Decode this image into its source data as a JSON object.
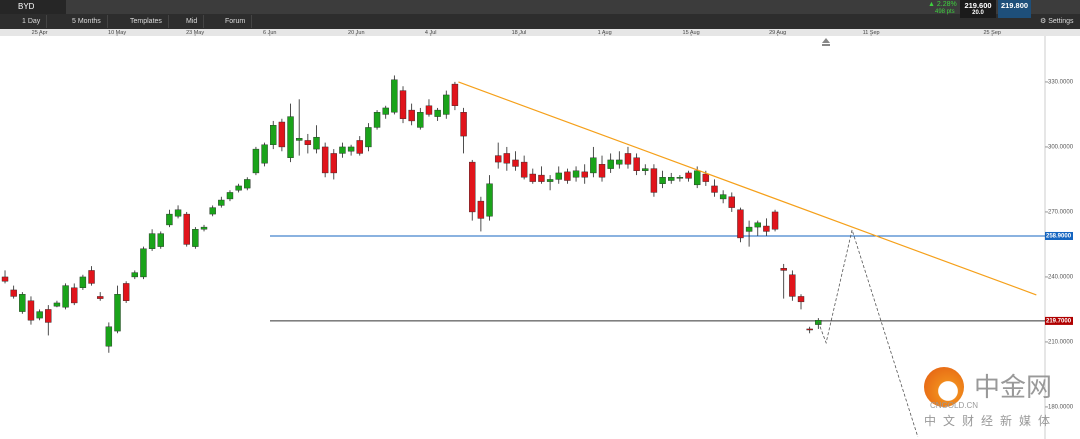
{
  "toolbar": {
    "symbol": "BYD",
    "buttons": [
      "1 Day",
      "5 Months",
      "Templates",
      "Mid",
      "Forum"
    ],
    "change": "2.28%",
    "points": "498 pts",
    "bid": "219.600",
    "spread": "20.0",
    "ask": "219.800",
    "settings": "Settings"
  },
  "watermark": {
    "name": "中金网",
    "site": "CNGOLD.CN",
    "slogan": "中文财经新媒体"
  },
  "chart_data": {
    "type": "candlestick",
    "up_color": "#1aa31a",
    "down_color": "#e0141b",
    "ylim": [
      165.2,
      351.2
    ],
    "yticks": [
      {
        "value": 330,
        "label": "330.0000"
      },
      {
        "value": 300,
        "label": "300.0000"
      },
      {
        "value": 270,
        "label": "270.0000"
      },
      {
        "value": 240,
        "label": "240.0000"
      },
      {
        "value": 210,
        "label": "210.0000"
      },
      {
        "value": 180,
        "label": "180.0000"
      }
    ],
    "xlim": [
      -0.58,
      120.2
    ],
    "xticks": [
      {
        "value": 4,
        "label": "25 Apr"
      },
      {
        "value": 12.95,
        "label": "10 May"
      },
      {
        "value": 21.97,
        "label": "23 May"
      },
      {
        "value": 30.6,
        "label": "6 Jun"
      },
      {
        "value": 40.6,
        "label": "20 Jun"
      },
      {
        "value": 49.2,
        "label": "4 Jul"
      },
      {
        "value": 59.4,
        "label": "18 Jul"
      },
      {
        "value": 69.3,
        "label": "1 Aug"
      },
      {
        "value": 79.3,
        "label": "15 Aug"
      },
      {
        "value": 89.3,
        "label": "29 Aug"
      },
      {
        "value": 100.1,
        "label": "11 Sep"
      },
      {
        "value": 114.1,
        "label": "25 Sep"
      }
    ],
    "ohlc": [
      [
        240,
        243,
        237,
        238
      ],
      [
        234,
        236,
        230,
        231
      ],
      [
        224,
        233,
        223,
        232
      ],
      [
        229,
        231,
        218,
        220
      ],
      [
        221,
        225,
        220,
        224
      ],
      [
        225,
        227,
        213,
        219
      ],
      [
        226.5,
        229,
        226,
        228
      ],
      [
        226,
        237,
        225,
        236
      ],
      [
        235,
        237,
        227,
        228
      ],
      [
        235,
        241,
        234,
        240
      ],
      [
        243,
        245,
        236,
        237
      ],
      [
        231,
        233,
        229,
        230
      ],
      [
        208,
        219,
        205,
        217
      ],
      [
        215,
        236,
        214,
        232
      ],
      [
        237,
        238,
        228,
        229
      ],
      [
        240,
        243,
        239,
        242
      ],
      [
        240,
        254,
        239,
        253
      ],
      [
        253,
        262,
        252,
        260
      ],
      [
        254,
        261,
        253,
        260
      ],
      [
        264,
        271,
        263,
        269
      ],
      [
        268,
        273,
        267,
        271
      ],
      [
        269,
        270,
        254,
        255
      ],
      [
        254,
        263,
        253,
        262
      ],
      [
        262,
        264,
        261,
        263
      ],
      [
        269,
        273,
        268,
        272
      ],
      [
        273,
        277,
        272,
        275.5
      ],
      [
        276,
        280,
        275,
        279
      ],
      [
        280,
        283,
        279,
        282
      ],
      [
        281,
        286,
        280,
        285
      ],
      [
        288,
        300,
        287,
        299
      ],
      [
        292.5,
        302,
        291,
        301
      ],
      [
        301,
        312,
        299,
        310
      ],
      [
        311.5,
        313,
        298,
        300
      ],
      [
        295,
        320,
        293,
        314
      ],
      [
        303,
        322,
        296,
        304
      ],
      [
        303,
        306,
        297,
        301
      ],
      [
        299,
        310,
        297,
        304.5
      ],
      [
        300,
        302,
        286,
        288
      ],
      [
        297,
        299,
        285,
        288
      ],
      [
        297,
        302,
        295,
        300
      ],
      [
        298,
        301,
        296,
        300
      ],
      [
        303,
        305,
        296,
        297
      ],
      [
        300,
        311,
        298,
        309
      ],
      [
        309,
        317,
        308,
        316
      ],
      [
        315,
        319,
        313,
        318
      ],
      [
        316,
        333,
        315,
        331
      ],
      [
        326,
        328,
        311,
        313
      ],
      [
        317,
        320,
        310,
        312
      ],
      [
        309,
        318,
        308,
        316
      ],
      [
        319,
        322,
        314,
        315
      ],
      [
        314,
        318,
        312,
        317
      ],
      [
        315,
        326,
        313,
        324
      ],
      [
        329,
        330,
        317,
        319
      ],
      [
        316,
        318,
        297,
        305
      ],
      [
        293,
        294,
        266,
        270
      ],
      [
        275,
        277,
        261,
        267
      ],
      [
        268,
        287,
        266,
        283
      ],
      [
        296,
        302,
        290,
        293
      ],
      [
        297,
        300,
        289,
        292.5
      ],
      [
        294,
        298,
        289,
        291
      ],
      [
        293,
        296,
        285,
        286
      ],
      [
        287.5,
        290,
        283,
        284
      ],
      [
        287,
        291,
        283,
        284
      ],
      [
        284,
        287,
        280,
        285
      ],
      [
        285,
        291,
        283,
        288
      ],
      [
        288.5,
        290,
        283,
        284.5
      ],
      [
        286,
        291,
        284,
        289
      ],
      [
        288.5,
        292,
        283,
        286
      ],
      [
        288,
        300,
        286,
        295
      ],
      [
        292,
        296,
        284,
        286
      ],
      [
        290,
        297,
        288,
        294
      ],
      [
        292,
        298,
        290,
        294
      ],
      [
        297,
        300,
        290,
        292
      ],
      [
        295,
        297,
        287,
        289
      ],
      [
        289,
        292,
        287,
        290
      ],
      [
        290,
        292,
        277,
        279
      ],
      [
        283,
        289,
        281,
        286
      ],
      [
        284.5,
        288,
        283,
        286
      ],
      [
        285.5,
        287,
        284,
        286
      ],
      [
        288,
        289,
        284,
        285.5
      ],
      [
        282.5,
        291,
        281,
        289
      ],
      [
        287.5,
        289,
        282,
        284
      ],
      [
        282,
        285,
        277,
        279
      ],
      [
        276,
        280,
        274,
        278
      ],
      [
        277,
        279,
        270,
        272
      ],
      [
        271,
        272,
        256,
        258
      ],
      [
        261,
        266,
        254,
        263
      ],
      [
        263,
        266,
        259,
        265
      ],
      [
        263.5,
        267,
        259,
        261
      ],
      [
        270,
        271,
        261,
        262
      ],
      [
        244,
        246,
        230,
        243
      ],
      [
        241,
        243,
        229,
        231
      ],
      [
        231,
        232,
        225,
        228.5
      ],
      [
        216,
        217,
        214,
        215.5
      ],
      [
        218,
        221,
        216,
        220
      ]
    ],
    "trendline": {
      "color": "#f5a01a",
      "x": [
        52.4,
        119.2
      ],
      "y": [
        330,
        231.7
      ]
    },
    "levels": [
      {
        "value": 258.9,
        "label": "258.9000",
        "color": "#1565c0"
      },
      {
        "value": 219.7,
        "label": "219.7000",
        "color": "#333333",
        "label_bg": "#b00000"
      }
    ],
    "forecast": {
      "color": "#555555",
      "x": [
        94.0,
        94.9,
        97.9,
        105.5
      ],
      "y": [
        219.2,
        209.6,
        261.7,
        166.2
      ]
    }
  }
}
